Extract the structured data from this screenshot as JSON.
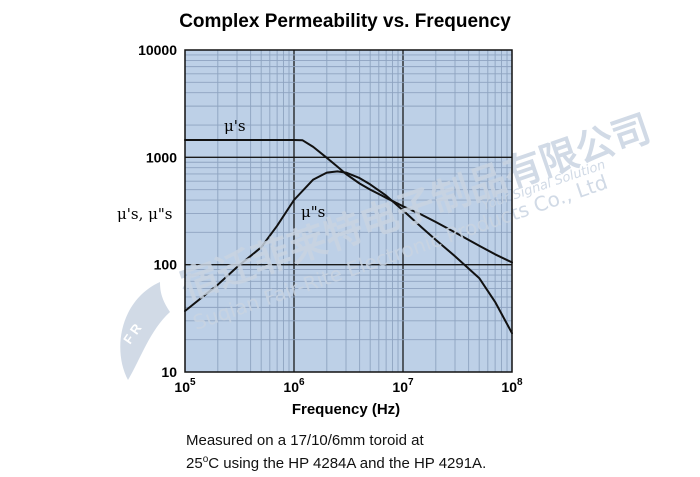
{
  "chart_data": {
    "type": "line",
    "title": "Complex Permeability vs. Frequency",
    "xlabel": "Frequency (Hz)",
    "ylabel": "μ's, μ\"s",
    "x_scale": "log",
    "y_scale": "log",
    "xlim": [
      100000,
      100000000
    ],
    "ylim": [
      10,
      10000
    ],
    "x_ticks": [
      {
        "value": 100000,
        "base": "10",
        "exp": "5"
      },
      {
        "value": 1000000,
        "base": "10",
        "exp": "6"
      },
      {
        "value": 10000000,
        "base": "10",
        "exp": "7"
      },
      {
        "value": 100000000,
        "base": "10",
        "exp": "8"
      }
    ],
    "y_ticks": [
      {
        "value": 10,
        "label": "10"
      },
      {
        "value": 100,
        "label": "100"
      },
      {
        "value": 1000,
        "label": "1000"
      },
      {
        "value": 10000,
        "label": "10000"
      }
    ],
    "grid": true,
    "series": [
      {
        "name": "μ's",
        "color": "#111111",
        "x": [
          100000,
          200000,
          500000,
          1000000,
          1200000,
          1500000,
          2000000,
          2500000,
          3000000,
          4000000,
          5000000,
          7000000,
          10000000,
          15000000,
          20000000,
          30000000,
          50000000,
          70000000,
          100000000
        ],
        "y": [
          1450,
          1450,
          1450,
          1450,
          1440,
          1250,
          990,
          820,
          700,
          570,
          500,
          420,
          350,
          290,
          250,
          200,
          150,
          125,
          105
        ]
      },
      {
        "name": "μ\"s",
        "color": "#111111",
        "x": [
          100000,
          200000,
          300000,
          500000,
          700000,
          1000000,
          1500000,
          2000000,
          2500000,
          3000000,
          4000000,
          5000000,
          7000000,
          10000000,
          15000000,
          20000000,
          30000000,
          50000000,
          70000000,
          100000000
        ],
        "y": [
          37,
          65,
          95,
          145,
          230,
          400,
          620,
          720,
          740,
          720,
          640,
          560,
          440,
          320,
          220,
          170,
          120,
          75,
          45,
          23
        ]
      }
    ],
    "annotations": {
      "mu_prime_label": "μ's",
      "mu_double_prime_label": "μ\"s"
    }
  },
  "note": {
    "line1": "Measured on a 17/10/6mm toroid at",
    "line2_prefix": "25",
    "line2_degree": "o",
    "line2_suffix": "C using the HP 4284A and the HP 4291A."
  },
  "watermark": {
    "chinese": "宿迁菲莱特电子制品有限公司",
    "english": "Suqian Fair-Rite Electronic Products Co., Ltd",
    "tagline": "Your Signal Solution",
    "logo_text": "F R"
  },
  "colors": {
    "plot_bg": "#bdd0e7",
    "grid_minor": "#8ea3c0",
    "grid_major": "#1a1a1a",
    "line": "#111111",
    "watermark": "#c9d4e2"
  }
}
